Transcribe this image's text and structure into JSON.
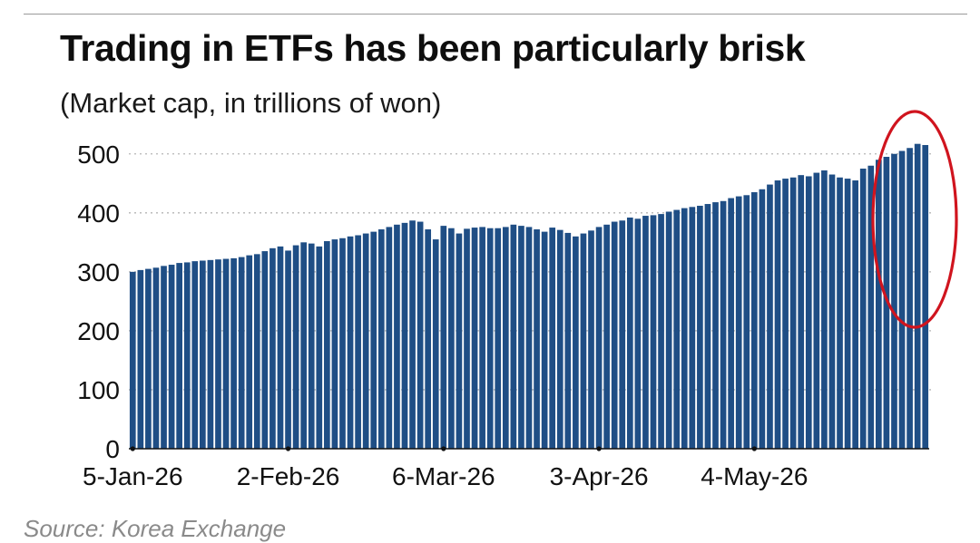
{
  "header": {
    "title": "Trading in ETFs has been particularly brisk",
    "subtitle": "(Market cap, in trillions of won)"
  },
  "footer": {
    "source": "Source: Korea Exchange"
  },
  "colors": {
    "bar": "#1f4e85",
    "highlight_ellipse": "#d0141e",
    "gridline": "#b5b5b5",
    "axis": "#111111"
  },
  "chart_data": {
    "type": "bar",
    "title": "Trading in ETFs has been particularly brisk",
    "subtitle": "(Market cap, in trillions of won)",
    "xlabel": "",
    "ylabel": "",
    "ylim": [
      0,
      520
    ],
    "yticks": [
      0,
      100,
      200,
      300,
      400,
      500
    ],
    "ytick_labels": [
      "0",
      "100",
      "200",
      "300",
      "400",
      "500"
    ],
    "xtick_labels": [
      "5-Jan-26",
      "2-Feb-26",
      "6-Mar-26",
      "3-Apr-26",
      "4-May-26"
    ],
    "xtick_bar_index": [
      0,
      20,
      40,
      60,
      80
    ],
    "grid": "horizontal dotted",
    "highlight": "last ~7 bars circled in red",
    "series": [
      {
        "values": [
          300,
          303,
          305,
          307,
          310,
          312,
          315,
          316,
          318,
          319,
          320,
          321,
          322,
          323,
          325,
          328,
          330,
          335,
          340,
          343,
          336,
          345,
          350,
          348,
          343,
          352,
          355,
          357,
          360,
          362,
          365,
          368,
          372,
          376,
          380,
          383,
          387,
          385,
          372,
          355,
          378,
          374,
          365,
          373,
          375,
          376,
          374,
          374,
          376,
          380,
          378,
          376,
          372,
          368,
          375,
          371,
          366,
          360,
          365,
          370,
          376,
          380,
          385,
          387,
          392,
          390,
          395,
          396,
          398,
          402,
          405,
          408,
          410,
          412,
          415,
          418,
          420,
          425,
          428,
          430,
          435,
          440,
          448,
          455,
          458,
          460,
          464,
          462,
          468,
          472,
          465,
          460,
          458,
          455,
          475,
          480,
          490,
          495,
          500,
          505,
          510,
          517,
          515
        ]
      }
    ]
  }
}
